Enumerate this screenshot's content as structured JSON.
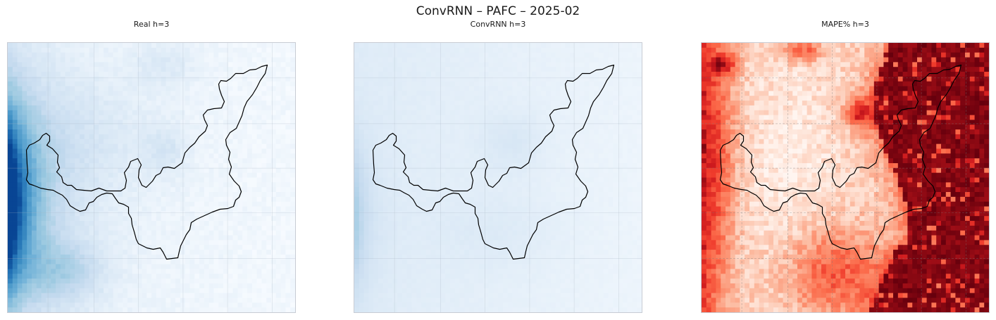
{
  "figure": {
    "suptitle": "ConvRNN – PAFC – 2025-02"
  },
  "chart_data": [
    {
      "type": "heatmap",
      "title": "Real h=3",
      "colormap": "Blues",
      "grid": true
    },
    {
      "type": "heatmap",
      "title": "ConvRNN h=3",
      "colormap": "Blues",
      "grid": true
    },
    {
      "type": "heatmap",
      "title": "MAPE% h=3",
      "colormap": "Reds",
      "grid": true
    }
  ],
  "colors": {
    "border": "#c8ccd4",
    "outline": "#000000"
  }
}
